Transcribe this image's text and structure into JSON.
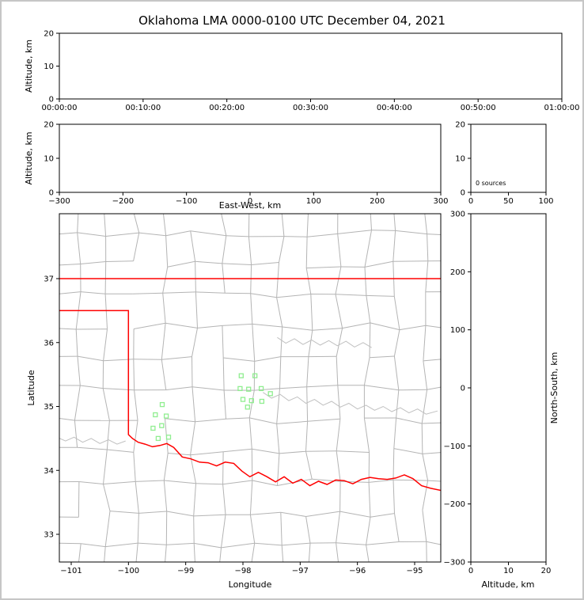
{
  "title": "Oklahoma LMA 0000-0100 UTC December 04, 2021",
  "colors": {
    "state_border": "#ff0000",
    "county": "#b4b4b4",
    "river": "#c0c0c0",
    "station": "#90ee90",
    "frame": "#000000",
    "figure_border": "#c6c6c6"
  },
  "chart_data": [
    {
      "id": "time-altitude-panel",
      "type": "scatter",
      "title": "",
      "xlabel": "",
      "ylabel": "Altitude, km",
      "ylim": [
        0,
        20
      ],
      "yticks": [
        0,
        10,
        20
      ],
      "xtick_labels": [
        "00:00:00",
        "00:10:00",
        "00:20:00",
        "00:30:00",
        "00:40:00",
        "00:50:00",
        "01:00:00"
      ],
      "points": []
    },
    {
      "id": "ew-altitude-panel",
      "type": "scatter",
      "xlabel": "East-West, km",
      "ylabel": "Altitude, km",
      "xlim": [
        -300,
        300
      ],
      "xticks": [
        -300,
        -200,
        -100,
        0,
        100,
        200,
        300
      ],
      "ylim": [
        0,
        20
      ],
      "yticks": [
        0,
        10,
        20
      ],
      "points": []
    },
    {
      "id": "altitude-histogram-panel",
      "type": "line",
      "annotation": "0 sources",
      "xlim": [
        0,
        100
      ],
      "xticks": [
        0,
        50,
        100
      ],
      "ylim": [
        0,
        20
      ],
      "yticks": [
        0,
        10,
        20
      ],
      "points": []
    },
    {
      "id": "plan-view-map-panel",
      "type": "scatter",
      "xlabel": "Longitude",
      "ylabel": "Latitude",
      "xlim": [
        -101.21,
        -94.54
      ],
      "xticks": [
        -101,
        -100,
        -99,
        -98,
        -97,
        -96,
        -95
      ],
      "ylim": [
        32.57,
        38.02
      ],
      "yticks": [
        33,
        34,
        35,
        36,
        37
      ],
      "points": [],
      "stations": [
        [
          -98.03,
          35.48
        ],
        [
          -97.79,
          35.48
        ],
        [
          -98.05,
          35.28
        ],
        [
          -97.9,
          35.27
        ],
        [
          -97.68,
          35.28
        ],
        [
          -97.52,
          35.2
        ],
        [
          -98.0,
          35.11
        ],
        [
          -97.85,
          35.09
        ],
        [
          -97.67,
          35.08
        ],
        [
          -97.92,
          34.99
        ],
        [
          -99.41,
          35.03
        ],
        [
          -99.53,
          34.87
        ],
        [
          -99.34,
          34.85
        ],
        [
          -99.42,
          34.7
        ],
        [
          -99.57,
          34.66
        ],
        [
          -99.3,
          34.52
        ],
        [
          -99.48,
          34.5
        ]
      ],
      "state_border": {
        "kansas_37N": [
          [
            -101.25,
            37.0
          ],
          [
            -94.5,
            37.0
          ]
        ],
        "texas_red_river": [
          [
            -101.25,
            36.5
          ],
          [
            -100.0,
            36.5
          ],
          [
            -100.0,
            34.56
          ],
          [
            -99.93,
            34.5
          ],
          [
            -99.83,
            34.44
          ],
          [
            -99.71,
            34.41
          ],
          [
            -99.58,
            34.37
          ],
          [
            -99.45,
            34.39
          ],
          [
            -99.33,
            34.42
          ],
          [
            -99.21,
            34.36
          ],
          [
            -99.06,
            34.21
          ],
          [
            -98.91,
            34.18
          ],
          [
            -98.76,
            34.13
          ],
          [
            -98.61,
            34.12
          ],
          [
            -98.46,
            34.07
          ],
          [
            -98.31,
            34.13
          ],
          [
            -98.16,
            34.11
          ],
          [
            -98.02,
            33.99
          ],
          [
            -97.88,
            33.9
          ],
          [
            -97.73,
            33.97
          ],
          [
            -97.58,
            33.9
          ],
          [
            -97.43,
            33.82
          ],
          [
            -97.28,
            33.9
          ],
          [
            -97.13,
            33.8
          ],
          [
            -96.98,
            33.86
          ],
          [
            -96.83,
            33.76
          ],
          [
            -96.68,
            33.83
          ],
          [
            -96.53,
            33.78
          ],
          [
            -96.38,
            33.85
          ],
          [
            -96.23,
            33.84
          ],
          [
            -96.08,
            33.79
          ],
          [
            -95.93,
            33.86
          ],
          [
            -95.78,
            33.89
          ],
          [
            -95.63,
            33.87
          ],
          [
            -95.48,
            33.86
          ],
          [
            -95.33,
            33.88
          ],
          [
            -95.18,
            33.93
          ],
          [
            -95.03,
            33.87
          ],
          [
            -94.88,
            33.76
          ],
          [
            -94.72,
            33.72
          ],
          [
            -94.5,
            33.68
          ]
        ]
      },
      "rivers": [
        [
          [
            -97.4,
            36.08
          ],
          [
            -97.25,
            35.99
          ],
          [
            -97.1,
            36.06
          ],
          [
            -96.95,
            35.97
          ],
          [
            -96.8,
            36.04
          ],
          [
            -96.65,
            35.96
          ],
          [
            -96.5,
            36.03
          ],
          [
            -96.35,
            35.95
          ],
          [
            -96.2,
            36.02
          ],
          [
            -96.05,
            35.93
          ],
          [
            -95.9,
            36.0
          ],
          [
            -95.75,
            35.92
          ]
        ],
        [
          [
            -97.65,
            35.22
          ],
          [
            -97.5,
            35.13
          ],
          [
            -97.35,
            35.19
          ],
          [
            -97.2,
            35.09
          ],
          [
            -97.05,
            35.15
          ],
          [
            -96.9,
            35.05
          ],
          [
            -96.75,
            35.11
          ],
          [
            -96.6,
            35.02
          ],
          [
            -96.45,
            35.08
          ],
          [
            -96.3,
            34.99
          ],
          [
            -96.15,
            35.05
          ],
          [
            -96.0,
            34.96
          ],
          [
            -95.85,
            35.02
          ],
          [
            -95.7,
            34.94
          ],
          [
            -95.55,
            35.0
          ],
          [
            -95.4,
            34.92
          ],
          [
            -95.25,
            34.98
          ],
          [
            -95.1,
            34.9
          ],
          [
            -94.95,
            34.96
          ],
          [
            -94.8,
            34.88
          ],
          [
            -94.6,
            34.93
          ]
        ],
        [
          [
            -101.25,
            34.52
          ],
          [
            -101.1,
            34.46
          ],
          [
            -100.95,
            34.52
          ],
          [
            -100.8,
            34.44
          ],
          [
            -100.65,
            34.5
          ],
          [
            -100.5,
            34.42
          ],
          [
            -100.35,
            34.48
          ],
          [
            -100.2,
            34.41
          ],
          [
            -100.05,
            34.46
          ]
        ]
      ]
    },
    {
      "id": "ns-altitude-panel",
      "type": "scatter",
      "xlabel": "Altitude, km",
      "ylabel": "North-South, km",
      "xlim": [
        0,
        20
      ],
      "xticks": [
        0,
        10,
        20
      ],
      "ylim": [
        -300,
        300
      ],
      "yticks": [
        -300,
        -200,
        -100,
        0,
        100,
        200,
        300
      ],
      "points": []
    }
  ]
}
